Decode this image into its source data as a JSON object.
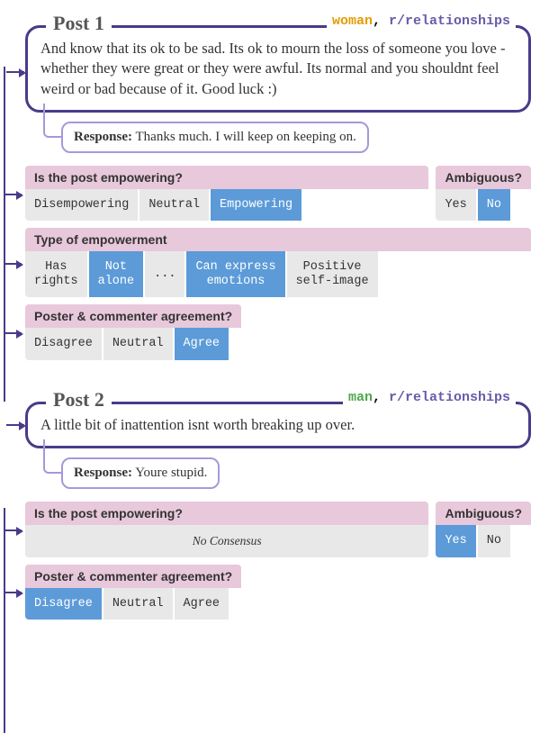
{
  "colors": {
    "accent_border": "#4a3a8a",
    "response_border": "#a898d8",
    "header_bg": "#e8c8db",
    "option_bg": "#e8e8e8",
    "selected_bg": "#5c9bd8",
    "woman": "#e69b00",
    "man": "#4ca64c",
    "subreddit": "#6a5aa8"
  },
  "post1": {
    "title": "Post 1",
    "meta_author": "woman",
    "meta_sep": ", ",
    "meta_sub": "r/relationships",
    "content": "And know that its ok to be sad. Its ok to mourn the loss of someone you love - whether they were great or they were awful. Its normal and you shouldnt feel weird or bad because of it.  Good luck :)",
    "response_label": "Response:",
    "response_text": " Thanks much.  I will keep on keeping on.",
    "q_empowering": {
      "label": "Is the post empowering?",
      "opts": [
        {
          "t": "Disempowering",
          "sel": false
        },
        {
          "t": "Neutral",
          "sel": false
        },
        {
          "t": "Empowering",
          "sel": true
        }
      ]
    },
    "q_ambiguous": {
      "label": "Ambiguous?",
      "opts": [
        {
          "t": "Yes",
          "sel": false
        },
        {
          "t": "No",
          "sel": true
        }
      ]
    },
    "q_type": {
      "label": "Type of empowerment",
      "opts": [
        {
          "t": "Has\nrights",
          "sel": false
        },
        {
          "t": "Not\nalone",
          "sel": true
        },
        {
          "t": "...",
          "sel": false
        },
        {
          "t": "Can express\nemotions",
          "sel": true
        },
        {
          "t": "Positive\nself-image",
          "sel": false
        }
      ]
    },
    "q_agree": {
      "label": "Poster & commenter agreement?",
      "opts": [
        {
          "t": "Disagree",
          "sel": false
        },
        {
          "t": "Neutral",
          "sel": false
        },
        {
          "t": "Agree",
          "sel": true
        }
      ]
    }
  },
  "post2": {
    "title": "Post 2",
    "meta_author": "man",
    "meta_sep": ", ",
    "meta_sub": "r/relationships",
    "content": "A little bit of inattention isnt worth breaking up over.",
    "response_label": "Response:",
    "response_text": " Youre stupid.",
    "q_empowering": {
      "label": "Is the post empowering?",
      "noconsensus": "No Consensus"
    },
    "q_ambiguous": {
      "label": "Ambiguous?",
      "opts": [
        {
          "t": "Yes",
          "sel": true
        },
        {
          "t": "No",
          "sel": false
        }
      ]
    },
    "q_agree": {
      "label": "Poster & commenter agreement?",
      "opts": [
        {
          "t": "Disagree",
          "sel": true
        },
        {
          "t": "Neutral",
          "sel": false
        },
        {
          "t": "Agree",
          "sel": false
        }
      ]
    }
  }
}
